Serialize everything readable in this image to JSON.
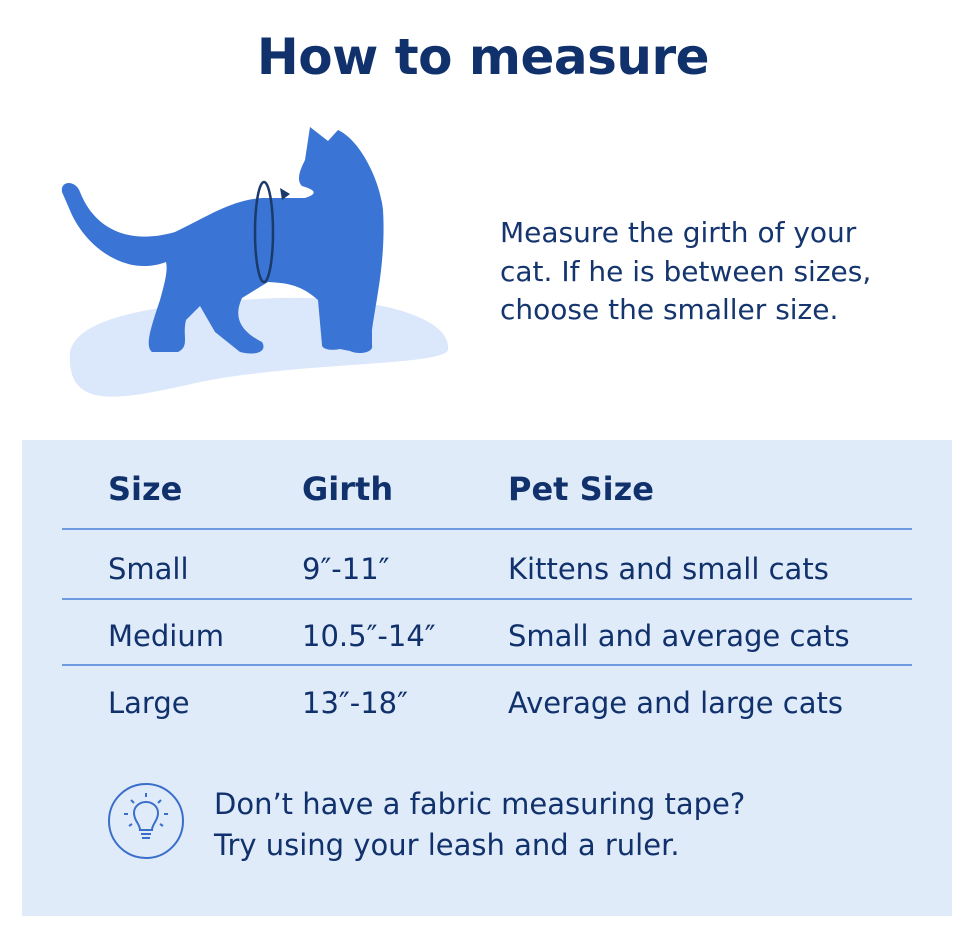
{
  "title": "How to measure",
  "description": [
    "Measure the girth of your",
    "cat. If he is between sizes,",
    "choose the smaller size."
  ],
  "colors": {
    "text": "#10316b",
    "cat": "#3a74d4",
    "panel": "#e0ebfa",
    "divider": "#6e9ae0"
  },
  "table": {
    "headers": [
      "Size",
      "Girth",
      "Pet Size"
    ],
    "rows": [
      [
        "Small",
        "9″-11″",
        "Kittens and small cats"
      ],
      [
        "Medium",
        "10.5″-14″",
        "Small and average cats"
      ],
      [
        "Large",
        "13″-18″",
        "Average and large cats"
      ]
    ]
  },
  "tip": {
    "icon": "lightbulb-icon",
    "lines": [
      "Don’t have a fabric measuring tape?",
      "Try using your leash and a ruler."
    ]
  }
}
